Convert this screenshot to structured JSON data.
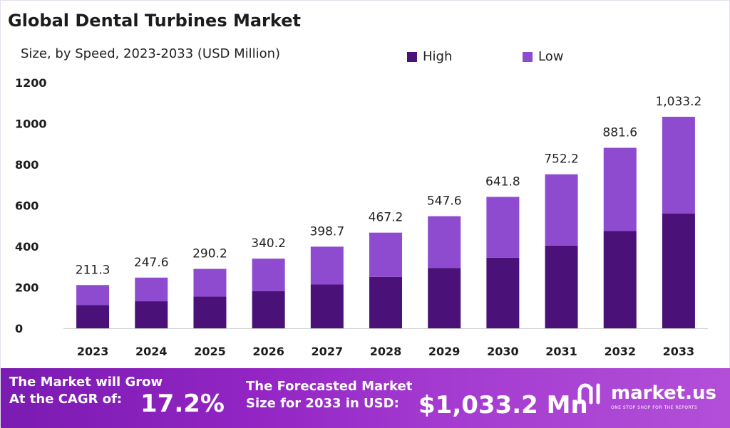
{
  "header": {
    "title": "Global Dental Turbines Market",
    "subtitle": "Size, by Speed, 2023-2033 (USD Million)"
  },
  "legend": [
    {
      "label": "High",
      "color": "#4a1278"
    },
    {
      "label": "Low",
      "color": "#8e4bd0"
    }
  ],
  "chart_data": {
    "type": "bar",
    "stacked": true,
    "categories": [
      "2023",
      "2024",
      "2025",
      "2026",
      "2027",
      "2028",
      "2029",
      "2030",
      "2031",
      "2032",
      "2033"
    ],
    "series": [
      {
        "name": "High",
        "color": "#4a1278",
        "values": [
          113,
          132,
          155,
          182,
          214,
          251,
          295,
          345,
          404,
          476,
          560
        ]
      },
      {
        "name": "Low",
        "color": "#8e4bd0",
        "values": [
          98.3,
          115.6,
          135.2,
          158.2,
          184.7,
          216.2,
          252.6,
          296.8,
          348.2,
          405.6,
          473.2
        ]
      }
    ],
    "totals": [
      211.3,
      247.6,
      290.2,
      340.2,
      398.7,
      467.2,
      547.6,
      641.8,
      752.2,
      881.6,
      1033.2
    ],
    "total_labels": [
      "211.3",
      "247.6",
      "290.2",
      "340.2",
      "398.7",
      "467.2",
      "547.6",
      "641.8",
      "752.2",
      "881.6",
      "1,033.2"
    ],
    "yticks": [
      "0",
      "200",
      "400",
      "600",
      "800",
      "1000",
      "1200"
    ],
    "ylim": [
      0,
      1200
    ],
    "grid": false,
    "legend_position": "top-right"
  },
  "footer": {
    "cagr_text": "The Market will Grow At the CAGR of:",
    "cagr_value": "17.2%",
    "forecast_text": "The Forecasted Market Size for 2033 in USD:",
    "forecast_value": "$1,033.2 Mn",
    "brand_name": "market.us",
    "brand_tagline": "ONE STOP SHOP FOR THE REPORTS"
  }
}
